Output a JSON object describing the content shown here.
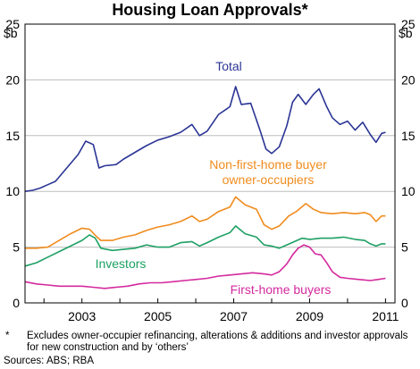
{
  "chart_data": {
    "type": "line",
    "title": "Housing Loan Approvals*",
    "unit_left": "$b",
    "unit_right": "$b",
    "xlim": [
      2001.5,
      2011.25
    ],
    "ylim": [
      0,
      25
    ],
    "x_ticks": [
      2003,
      2005,
      2007,
      2009,
      2011
    ],
    "y_ticks": [
      0,
      5,
      10,
      15,
      20,
      25
    ],
    "grid": true,
    "series": [
      {
        "name": "Total",
        "color": "#2b3595",
        "label_lines": [
          "Total"
        ],
        "x": [
          2001.5,
          2001.7,
          2001.9,
          2002.1,
          2002.3,
          2002.6,
          2002.9,
          2003.1,
          2003.3,
          2003.45,
          2003.6,
          2003.9,
          2004.1,
          2004.4,
          2004.7,
          2005.0,
          2005.3,
          2005.6,
          2005.9,
          2006.1,
          2006.3,
          2006.6,
          2006.9,
          2007.05,
          2007.2,
          2007.45,
          2007.7,
          2007.85,
          2008.0,
          2008.2,
          2008.4,
          2008.55,
          2008.7,
          2008.9,
          2009.1,
          2009.25,
          2009.45,
          2009.6,
          2009.8,
          2010.0,
          2010.2,
          2010.4,
          2010.6,
          2010.75,
          2010.9,
          2011.0
        ],
        "y": [
          10.0,
          10.1,
          10.3,
          10.6,
          10.9,
          12.1,
          13.3,
          14.5,
          14.2,
          12.1,
          12.3,
          12.4,
          12.9,
          13.5,
          14.1,
          14.6,
          14.9,
          15.3,
          16.0,
          15.0,
          15.4,
          16.9,
          17.6,
          19.4,
          17.8,
          17.9,
          15.4,
          13.8,
          13.4,
          14.0,
          15.9,
          18.0,
          18.7,
          17.8,
          18.7,
          19.2,
          17.6,
          16.6,
          16.0,
          16.3,
          15.5,
          16.2,
          15.1,
          14.4,
          15.2,
          15.3
        ]
      },
      {
        "name": "Non-first-home buyer owner-occupiers",
        "color": "#f08c1e",
        "label_lines": [
          "Non-first-home buyer",
          "owner-occupiers"
        ],
        "x": [
          2001.5,
          2001.8,
          2002.1,
          2002.4,
          2002.7,
          2003.0,
          2003.2,
          2003.4,
          2003.5,
          2003.8,
          2004.1,
          2004.4,
          2004.7,
          2005.0,
          2005.3,
          2005.6,
          2005.9,
          2006.1,
          2006.3,
          2006.6,
          2006.9,
          2007.05,
          2007.3,
          2007.6,
          2007.8,
          2008.0,
          2008.2,
          2008.45,
          2008.65,
          2008.9,
          2009.1,
          2009.3,
          2009.6,
          2009.9,
          2010.2,
          2010.45,
          2010.6,
          2010.75,
          2010.9,
          2011.0
        ],
        "y": [
          4.9,
          4.9,
          5.0,
          5.6,
          6.2,
          6.7,
          6.6,
          5.9,
          5.6,
          5.6,
          5.9,
          6.1,
          6.5,
          6.8,
          7.0,
          7.3,
          7.8,
          7.3,
          7.5,
          8.2,
          8.6,
          9.5,
          8.8,
          8.4,
          7.0,
          6.6,
          6.9,
          7.8,
          8.2,
          8.9,
          8.4,
          8.1,
          8.0,
          8.1,
          8.0,
          8.1,
          7.9,
          7.3,
          7.8,
          7.8
        ]
      },
      {
        "name": "Investors",
        "color": "#1ea064",
        "label_lines": [
          "Investors"
        ],
        "x": [
          2001.5,
          2001.8,
          2002.1,
          2002.4,
          2002.7,
          2003.0,
          2003.2,
          2003.35,
          2003.5,
          2003.8,
          2004.1,
          2004.4,
          2004.7,
          2005.0,
          2005.3,
          2005.6,
          2005.9,
          2006.1,
          2006.3,
          2006.6,
          2006.9,
          2007.05,
          2007.3,
          2007.6,
          2007.8,
          2008.0,
          2008.2,
          2008.4,
          2008.6,
          2008.8,
          2009.0,
          2009.3,
          2009.6,
          2009.9,
          2010.2,
          2010.45,
          2010.6,
          2010.75,
          2010.9,
          2011.0
        ],
        "y": [
          3.3,
          3.6,
          4.1,
          4.6,
          5.1,
          5.6,
          6.1,
          5.8,
          4.9,
          4.7,
          4.8,
          4.9,
          5.2,
          5.0,
          5.0,
          5.4,
          5.5,
          5.1,
          5.4,
          5.9,
          6.3,
          6.9,
          6.2,
          5.9,
          5.2,
          5.1,
          4.9,
          5.2,
          5.5,
          5.8,
          5.7,
          5.8,
          5.8,
          5.9,
          5.7,
          5.6,
          5.3,
          5.1,
          5.3,
          5.3
        ]
      },
      {
        "name": "First-home buyers",
        "color": "#d42a9e",
        "label_lines": [
          "First-home buyers"
        ],
        "x": [
          2001.5,
          2001.8,
          2002.1,
          2002.4,
          2002.7,
          2003.0,
          2003.3,
          2003.6,
          2003.9,
          2004.2,
          2004.5,
          2004.8,
          2005.1,
          2005.4,
          2005.7,
          2006.0,
          2006.3,
          2006.6,
          2006.9,
          2007.2,
          2007.5,
          2007.8,
          2008.0,
          2008.2,
          2008.4,
          2008.55,
          2008.7,
          2008.85,
          2009.0,
          2009.15,
          2009.3,
          2009.45,
          2009.6,
          2009.8,
          2010.0,
          2010.3,
          2010.6,
          2010.8,
          2011.0
        ],
        "y": [
          1.9,
          1.7,
          1.6,
          1.5,
          1.5,
          1.5,
          1.4,
          1.3,
          1.4,
          1.5,
          1.7,
          1.8,
          1.8,
          1.9,
          2.0,
          2.1,
          2.2,
          2.4,
          2.5,
          2.6,
          2.7,
          2.6,
          2.5,
          2.8,
          3.5,
          4.3,
          4.9,
          5.2,
          5.0,
          4.4,
          4.3,
          3.6,
          2.8,
          2.3,
          2.2,
          2.1,
          2.0,
          2.1,
          2.2
        ]
      }
    ]
  },
  "footnote": {
    "marker": "*",
    "text": "Excludes owner-occupier refinancing, alterations & additions and investor approvals for new construction and by ‘others’"
  },
  "sources": "Sources: ABS; RBA"
}
